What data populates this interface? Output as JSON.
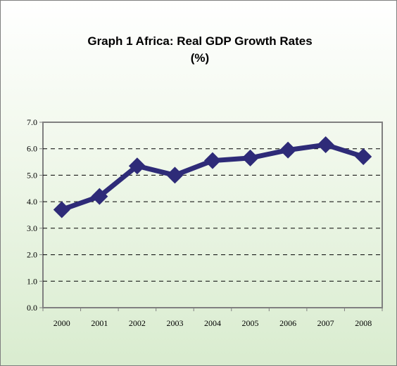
{
  "chart_data": {
    "type": "line",
    "title": "Graph 1 Africa: Real GDP Growth Rates",
    "subtitle": "(%)",
    "xlabel": "",
    "ylabel": "",
    "categories": [
      "2000",
      "2001",
      "2002",
      "2003",
      "2004",
      "2005",
      "2006",
      "2007",
      "2008"
    ],
    "series": [
      {
        "values": [
          3.7,
          4.2,
          5.35,
          5.0,
          5.55,
          5.65,
          5.95,
          6.15,
          5.7
        ]
      }
    ],
    "ylim": [
      0,
      7
    ],
    "yticks": [
      "0.0",
      "1.0",
      "2.0",
      "3.0",
      "4.0",
      "5.0",
      "6.0",
      "7.0"
    ],
    "grid": "horizontal dashed",
    "legend": "none",
    "colors": {
      "line": "#2e2b78",
      "marker": "#2e2b78",
      "grid": "#000000",
      "axis": "#808080",
      "plot_background_top": "#ffffff",
      "plot_background_bottom": "#d9eccf"
    },
    "marker_shape": "diamond"
  }
}
